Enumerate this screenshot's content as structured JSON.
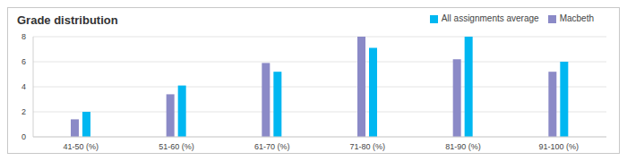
{
  "chart_data": {
    "type": "bar",
    "title": "Grade distribution",
    "categories": [
      "41-50 (%)",
      "51-60 (%)",
      "61-70 (%)",
      "71-80 (%)",
      "81-90 (%)",
      "91-100 (%)"
    ],
    "series": [
      {
        "name": "Macbeth",
        "color": "#8b8ac7",
        "values": [
          1.4,
          3.4,
          5.9,
          8,
          6.2,
          5.2
        ]
      },
      {
        "name": "All assignments average",
        "color": "#00b7f1",
        "values": [
          2,
          4.1,
          5.2,
          7.1,
          8,
          6
        ]
      }
    ],
    "ylim": [
      0,
      8
    ],
    "yticks": [
      0,
      2,
      4,
      6,
      8
    ],
    "grid": true,
    "legend": "top-right"
  }
}
